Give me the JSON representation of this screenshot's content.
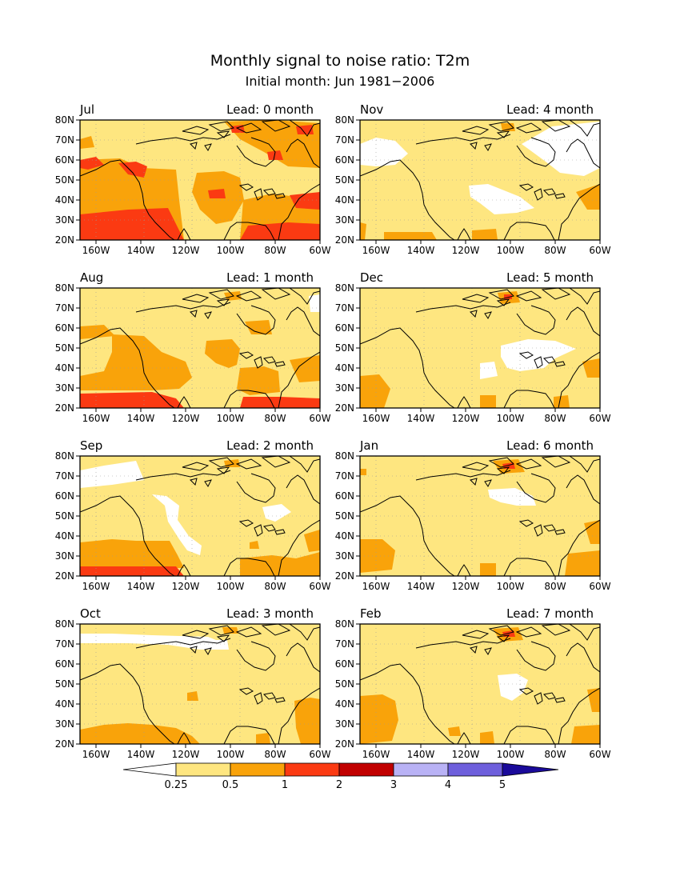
{
  "title": "Monthly signal to noise ratio: T2m",
  "subtitle": "Initial month: Jun 1981−2006",
  "lon_ticks": [
    "160W",
    "140W",
    "120W",
    "100W",
    "80W",
    "60W"
  ],
  "lat_ticks": [
    "20N",
    "30N",
    "40N",
    "50N",
    "60N",
    "70N",
    "80N"
  ],
  "panels": [
    {
      "month": "Jul",
      "lead": "Lead: 0 month"
    },
    {
      "month": "Nov",
      "lead": "Lead: 4 month"
    },
    {
      "month": "Aug",
      "lead": "Lead: 1 month"
    },
    {
      "month": "Dec",
      "lead": "Lead: 5 month"
    },
    {
      "month": "Sep",
      "lead": "Lead: 2 month"
    },
    {
      "month": "Jan",
      "lead": "Lead: 6 month"
    },
    {
      "month": "Oct",
      "lead": "Lead: 3 month"
    },
    {
      "month": "Feb",
      "lead": "Lead: 7 month"
    }
  ],
  "colorbar": {
    "labels": [
      "0.25",
      "0.5",
      "1",
      "2",
      "3",
      "4",
      "5"
    ],
    "colors": [
      "#ffffff",
      "#fee680",
      "#f9a30a",
      "#fb3a12",
      "#c10000",
      "#b9b2f5",
      "#6e5fdc",
      "#1a0a9a"
    ]
  },
  "colors": {
    "white": "#ffffff",
    "yellow": "#fee680",
    "orange": "#f9a30a",
    "red": "#fb3a12",
    "darkred": "#c10000",
    "coast": "#000000",
    "grid": "#999999"
  }
}
